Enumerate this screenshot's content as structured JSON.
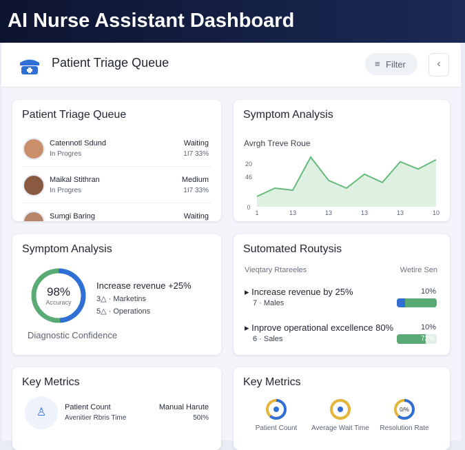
{
  "header": {
    "title": "AI Nurse Assistant Dashboard"
  },
  "toolbar": {
    "title": "Patient Triage Queue",
    "filter": "Filter"
  },
  "triage": {
    "title": "Patient Triage Queue",
    "patients": [
      {
        "name": "Catennotl Sdund",
        "status": "In Progres",
        "level": "Waiting",
        "time": "1I7 33%"
      },
      {
        "name": "Maikal Stithran",
        "status": "In Progres",
        "level": "Medium",
        "time": "1I7 33%"
      },
      {
        "name": "Sumgi Baring",
        "level": "Waiting"
      }
    ]
  },
  "symptom_chart": {
    "title": "Symptom Analysis",
    "subtitle": "Avrgh Treve Roue",
    "type": "line",
    "color": "#66bb7a",
    "values": [
      20,
      36,
      32,
      96,
      51,
      36,
      63,
      47,
      87,
      73,
      91
    ],
    "ylim": [
      0,
      100
    ],
    "y_labels": [
      "20",
      "46",
      "0"
    ],
    "x_labels": [
      "1",
      "13",
      "13",
      "13",
      "13",
      "10"
    ]
  },
  "symptom_analysis": {
    "title": "Symptom Analysis",
    "gauge": {
      "value": 98,
      "label": "98%",
      "caption": "Accuracy"
    },
    "headline": "Increase revenue +25%",
    "items": [
      "3△ · Marketins",
      "5△ · Operations"
    ],
    "footer": "Diagnostic Confidence"
  },
  "routysis": {
    "title": "Sutomated Routysis",
    "columns": [
      "Vieqtary Rtareeles",
      "Wetire Sen"
    ],
    "rows": [
      {
        "label": "Increase revenue by 25%",
        "sub": "7 · Males",
        "percent": "10%"
      },
      {
        "label": "Inprove operational excellence 80%",
        "sub": "6 · Sales",
        "percent": "10%",
        "bar": 72,
        "bar_label": "72%"
      }
    ]
  },
  "key_metrics_left": {
    "title": "Key Metrics",
    "label": "Patient Count",
    "sub": "Avenitier Rbris Time",
    "right": "Manual Harute",
    "right_sub": "50I%"
  },
  "key_metrics_right": {
    "title": "Key Metrics",
    "rings": [
      {
        "label": "Patient Count"
      },
      {
        "label": "Average Wait Time"
      },
      {
        "label": "Resolution Rate",
        "center": "0/%"
      }
    ]
  }
}
